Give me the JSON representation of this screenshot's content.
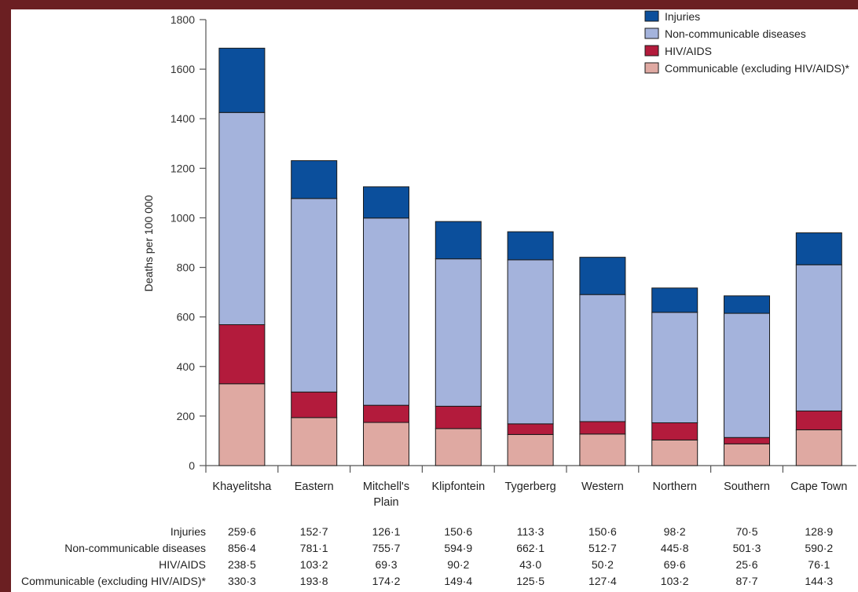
{
  "chart_data": {
    "type": "bar",
    "stacked": true,
    "ylabel": "Deaths per 100 000",
    "xlabel": "",
    "title": "",
    "ylim": [
      0,
      1800
    ],
    "yticks": [
      "0",
      "200",
      "400",
      "600",
      "800",
      "1000",
      "1200",
      "1400",
      "1600",
      "1800"
    ],
    "categories": [
      [
        "Khayelitsha"
      ],
      [
        "Eastern"
      ],
      [
        "Mitchell's",
        "Plain"
      ],
      [
        "Klipfontein"
      ],
      [
        "Tygerberg"
      ],
      [
        "Western"
      ],
      [
        "Northern"
      ],
      [
        "Southern"
      ],
      [
        "Cape Town"
      ]
    ],
    "series": [
      {
        "name": "Communicable (excluding HIV/AIDS)*",
        "color": "#dfa9a2",
        "values": [
          330.3,
          193.8,
          174.2,
          149.4,
          125.5,
          127.4,
          103.2,
          87.7,
          144.3
        ],
        "labels": [
          "330·3",
          "193·8",
          "174·2",
          "149·4",
          "125·5",
          "127·4",
          "103·2",
          "87·7",
          "144·3"
        ]
      },
      {
        "name": "HIV/AIDS",
        "color": "#b31b3c",
        "values": [
          238.5,
          103.2,
          69.3,
          90.2,
          43.0,
          50.2,
          69.6,
          25.6,
          76.1
        ],
        "labels": [
          "238·5",
          "103·2",
          "69·3",
          "90·2",
          "43·0",
          "50·2",
          "69·6",
          "25·6",
          "76·1"
        ]
      },
      {
        "name": "Non-communicable diseases",
        "color": "#a4b3dc",
        "values": [
          856.4,
          781.1,
          755.7,
          594.9,
          662.1,
          512.7,
          445.8,
          501.3,
          590.2
        ],
        "labels": [
          "856·4",
          "781·1",
          "755·7",
          "594·9",
          "662·1",
          "512·7",
          "445·8",
          "501·3",
          "590·2"
        ]
      },
      {
        "name": "Injuries",
        "color": "#0b4f9c",
        "values": [
          259.6,
          152.7,
          126.1,
          150.6,
          113.3,
          150.6,
          98.2,
          70.5,
          128.9
        ],
        "labels": [
          "259·6",
          "152·7",
          "126·1",
          "150·6",
          "113·3",
          "150·6",
          "98·2",
          "70·5",
          "128·9"
        ]
      }
    ],
    "legend": {
      "placement": "top-right",
      "entries": [
        {
          "label": "Injuries",
          "color": "#0b4f9c"
        },
        {
          "label": "Non-communicable diseases",
          "color": "#a4b3dc"
        },
        {
          "label": "HIV/AIDS",
          "color": "#b31b3c"
        },
        {
          "label": "Communicable (excluding HIV/AIDS)*",
          "color": "#dfa9a2"
        }
      ]
    },
    "table": {
      "rows": [
        {
          "label": "Injuries",
          "series_index": 3
        },
        {
          "label": "Non-communicable diseases",
          "series_index": 2
        },
        {
          "label": "HIV/AIDS",
          "series_index": 1
        },
        {
          "label": "Communicable (excluding HIV/AIDS)*",
          "series_index": 0
        }
      ]
    },
    "grid": false
  }
}
